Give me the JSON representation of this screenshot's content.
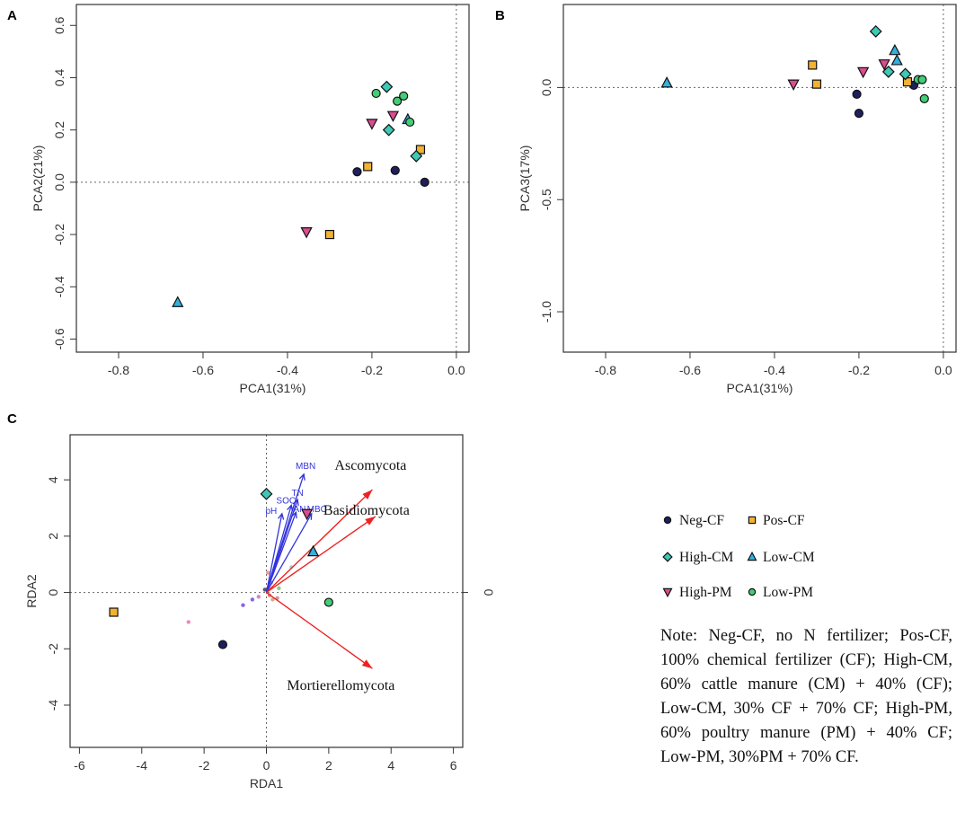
{
  "colors": {
    "neg_cf": "#1d1f5e",
    "pos_cf": "#f2b233",
    "high_cm": "#3fc8b5",
    "low_cm": "#33b0dd",
    "high_pm": "#d94d8e",
    "low_pm": "#44cc77",
    "env_arrow": "#3333dd",
    "taxa_arrow": "#ee2222"
  },
  "chart_data": [
    {
      "id": "A",
      "type": "scatter",
      "panel_label": "A",
      "xlabel": "PCA1(31%)",
      "ylabel": "PCA2(21%)",
      "xlim": [
        -0.9,
        0.03
      ],
      "ylim": [
        -0.65,
        0.68
      ],
      "xticks": [
        "-0.8",
        "-0.6",
        "-0.4",
        "-0.2",
        "0.0"
      ],
      "xtick_values": [
        -0.8,
        -0.6,
        -0.4,
        -0.2,
        0.0
      ],
      "yticks": [
        "-0.6",
        "-0.4",
        "-0.2",
        "0.0",
        "0.2",
        "0.4",
        "0.6"
      ],
      "ytick_values": [
        -0.6,
        -0.4,
        -0.2,
        0.0,
        0.2,
        0.4,
        0.6
      ],
      "series": [
        {
          "name": "Neg-CF",
          "marker": "circle",
          "color_key": "neg_cf",
          "points": [
            [
              -0.235,
              0.04
            ],
            [
              -0.145,
              0.045
            ],
            [
              -0.075,
              0.0
            ]
          ]
        },
        {
          "name": "Pos-CF",
          "marker": "square",
          "color_key": "pos_cf",
          "points": [
            [
              -0.21,
              0.06
            ],
            [
              -0.085,
              0.125
            ],
            [
              -0.3,
              -0.2
            ]
          ]
        },
        {
          "name": "High-CM",
          "marker": "diamond",
          "color_key": "high_cm",
          "points": [
            [
              -0.165,
              0.365
            ],
            [
              -0.16,
              0.2
            ],
            [
              -0.095,
              0.1
            ]
          ]
        },
        {
          "name": "Low-CM",
          "marker": "triangle-up",
          "color_key": "low_cm",
          "points": [
            [
              -0.115,
              0.24
            ],
            [
              -0.66,
              -0.46
            ]
          ]
        },
        {
          "name": "High-PM",
          "marker": "triangle-down",
          "color_key": "high_pm",
          "points": [
            [
              -0.2,
              0.225
            ],
            [
              -0.15,
              0.255
            ],
            [
              -0.355,
              -0.19
            ]
          ]
        },
        {
          "name": "Low-PM",
          "marker": "circle",
          "color_key": "low_pm",
          "points": [
            [
              -0.19,
              0.34
            ],
            [
              -0.14,
              0.31
            ],
            [
              -0.125,
              0.33
            ],
            [
              -0.11,
              0.23
            ]
          ]
        }
      ]
    },
    {
      "id": "B",
      "type": "scatter",
      "panel_label": "B",
      "xlabel": "PCA1(31%)",
      "ylabel": "PCA3(17%)",
      "xlim": [
        -0.9,
        0.03
      ],
      "ylim": [
        -1.18,
        0.37
      ],
      "xticks": [
        "-0.8",
        "-0.6",
        "-0.4",
        "-0.2",
        "0.0"
      ],
      "xtick_values": [
        -0.8,
        -0.6,
        -0.4,
        -0.2,
        0.0
      ],
      "yticks": [
        "-1.0",
        "-0.5",
        "0.0"
      ],
      "ytick_values": [
        -1.0,
        -0.5,
        0.0
      ],
      "series": [
        {
          "name": "Neg-CF",
          "marker": "circle",
          "color_key": "neg_cf",
          "points": [
            [
              -0.205,
              -0.03
            ],
            [
              -0.2,
              -0.115
            ],
            [
              -0.07,
              0.01
            ]
          ]
        },
        {
          "name": "Pos-CF",
          "marker": "square",
          "color_key": "pos_cf",
          "points": [
            [
              -0.31,
              0.1
            ],
            [
              -0.3,
              0.015
            ],
            [
              -0.085,
              0.025
            ]
          ]
        },
        {
          "name": "High-CM",
          "marker": "diamond",
          "color_key": "high_cm",
          "points": [
            [
              -0.16,
              0.25
            ],
            [
              -0.13,
              0.07
            ],
            [
              -0.09,
              0.06
            ]
          ]
        },
        {
          "name": "Low-CM",
          "marker": "triangle-up",
          "color_key": "low_cm",
          "points": [
            [
              -0.655,
              0.02
            ],
            [
              -0.115,
              0.165
            ],
            [
              -0.11,
              0.12
            ]
          ]
        },
        {
          "name": "High-PM",
          "marker": "triangle-down",
          "color_key": "high_pm",
          "points": [
            [
              -0.355,
              0.015
            ],
            [
              -0.19,
              0.07
            ],
            [
              -0.14,
              0.105
            ]
          ]
        },
        {
          "name": "Low-PM",
          "marker": "circle",
          "color_key": "low_pm",
          "points": [
            [
              -0.06,
              0.035
            ],
            [
              -0.05,
              0.035
            ],
            [
              -0.045,
              -0.05
            ]
          ]
        }
      ]
    },
    {
      "id": "C",
      "type": "scatter",
      "panel_label": "C",
      "xlabel": "RDA1",
      "ylabel": "RDA2",
      "right_axis_tick": "0",
      "xlim": [
        -6.3,
        6.3
      ],
      "ylim": [
        -5.5,
        5.6
      ],
      "xticks": [
        "-6",
        "-4",
        "-2",
        "0",
        "2",
        "4",
        "6"
      ],
      "xtick_values": [
        -6,
        -4,
        -2,
        0,
        2,
        4,
        6
      ],
      "yticks": [
        "-4",
        "-2",
        "0",
        "2",
        "4"
      ],
      "ytick_values": [
        -4,
        -2,
        0,
        2,
        4
      ],
      "series": [
        {
          "name": "Neg-CF",
          "marker": "circle",
          "color_key": "neg_cf",
          "points": [
            [
              -1.4,
              -1.85
            ]
          ]
        },
        {
          "name": "Pos-CF",
          "marker": "square",
          "color_key": "pos_cf",
          "points": [
            [
              -4.9,
              -0.7
            ]
          ]
        },
        {
          "name": "High-CM",
          "marker": "diamond",
          "color_key": "high_cm",
          "points": [
            [
              0.0,
              3.5
            ]
          ]
        },
        {
          "name": "Low-CM",
          "marker": "triangle-up",
          "color_key": "low_cm",
          "points": [
            [
              1.5,
              1.45
            ]
          ]
        },
        {
          "name": "High-PM",
          "marker": "triangle-down",
          "color_key": "high_pm",
          "points": [
            [
              1.3,
              2.8
            ]
          ]
        },
        {
          "name": "Low-PM",
          "marker": "circle",
          "color_key": "low_pm",
          "points": [
            [
              2.0,
              -0.35
            ]
          ]
        }
      ],
      "minor_points": [
        [
          -2.5,
          -1.05,
          "#ee88bb"
        ],
        [
          -0.75,
          -0.45,
          "#8866dd"
        ],
        [
          -0.45,
          -0.25,
          "#8866dd"
        ],
        [
          -0.25,
          -0.15,
          "#cc88cc"
        ],
        [
          -0.05,
          0.1,
          "#555577"
        ],
        [
          0.05,
          0.7,
          "#ee9999"
        ],
        [
          0.1,
          -0.1,
          "#dd8888"
        ],
        [
          0.2,
          -0.25,
          "#ddaa88"
        ],
        [
          0.35,
          -0.2,
          "#cc9999"
        ],
        [
          0.4,
          0.15,
          "#88cc88"
        ],
        [
          0.15,
          0.35,
          "#9999dd"
        ],
        [
          0.8,
          0.9,
          "#99dddd"
        ]
      ],
      "env_vectors": [
        {
          "label": "MBN",
          "x": 1.2,
          "y": 4.2
        },
        {
          "label": "TN",
          "x": 1.0,
          "y": 3.3
        },
        {
          "label": "SOC",
          "x": 0.8,
          "y": 3.1
        },
        {
          "label": "pH",
          "x": 0.5,
          "y": 2.8
        },
        {
          "label": "AN",
          "x": 0.95,
          "y": 2.85
        },
        {
          "label": "MBC",
          "x": 1.45,
          "y": 2.8
        }
      ],
      "taxa_vectors": [
        {
          "label": "Ascomycota",
          "x": 3.4,
          "y": 3.65
        },
        {
          "label": "Basidiomycota",
          "x": 3.5,
          "y": 2.7
        },
        {
          "label": "Mortierellomycota",
          "x": 3.4,
          "y": -2.7
        }
      ]
    }
  ],
  "legend": {
    "items": [
      {
        "label": "Neg-CF",
        "marker": "circle",
        "color_key": "neg_cf"
      },
      {
        "label": "Pos-CF",
        "marker": "square",
        "color_key": "pos_cf"
      },
      {
        "label": "High-CM",
        "marker": "diamond",
        "color_key": "high_cm"
      },
      {
        "label": "Low-CM",
        "marker": "triangle-up",
        "color_key": "low_cm"
      },
      {
        "label": "High-PM",
        "marker": "triangle-down",
        "color_key": "high_pm"
      },
      {
        "label": "Low-PM",
        "marker": "circle",
        "color_key": "low_pm"
      }
    ]
  },
  "note": "Note: Neg-CF, no N fertilizer; Pos-CF, 100% chemical fertilizer (CF); High-CM, 60% cattle manure (CM) + 40% (CF); Low-CM, 30% CF + 70% CF; High-PM, 60% poultry manure (PM) + 40% CF; Low-PM, 30%PM + 70% CF."
}
